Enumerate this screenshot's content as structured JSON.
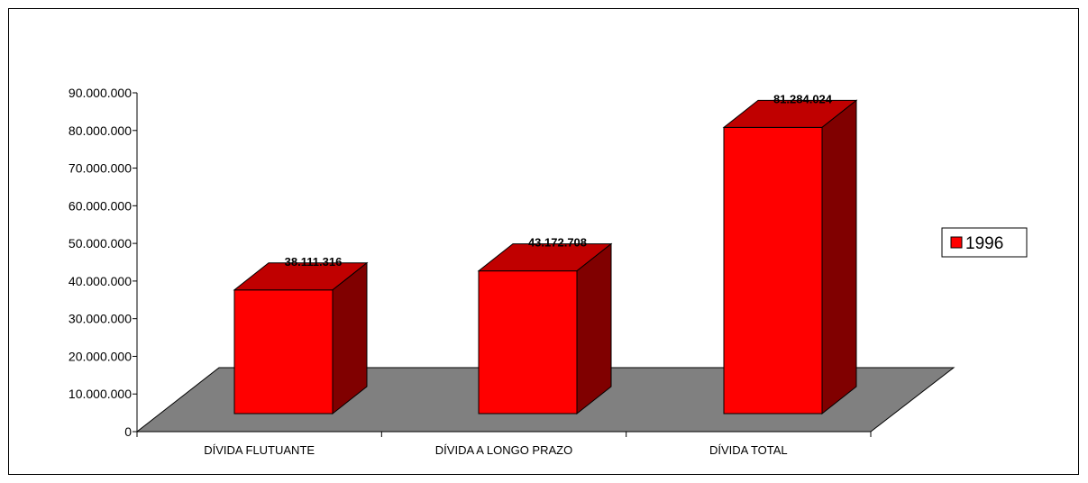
{
  "chart_data": {
    "type": "bar",
    "categories": [
      "DÍVIDA FLUTUANTE",
      "DÍVIDA A LONGO PRAZO",
      "DÍVIDA TOTAL"
    ],
    "series": [
      {
        "name": "1996",
        "values": [
          38111316,
          43172708,
          81284024
        ],
        "color": "#ff0000"
      }
    ],
    "data_labels": [
      "38.111.316",
      "43.172.708",
      "81.284.024"
    ],
    "yticks": [
      "0",
      "10.000.000",
      "20.000.000",
      "30.000.000",
      "40.000.000",
      "50.000.000",
      "60.000.000",
      "70.000.000",
      "80.000.000",
      "90.000.000"
    ],
    "ylim": [
      0,
      90000000
    ],
    "style": "3d",
    "floor_color": "#808080",
    "legend_position": "right"
  }
}
